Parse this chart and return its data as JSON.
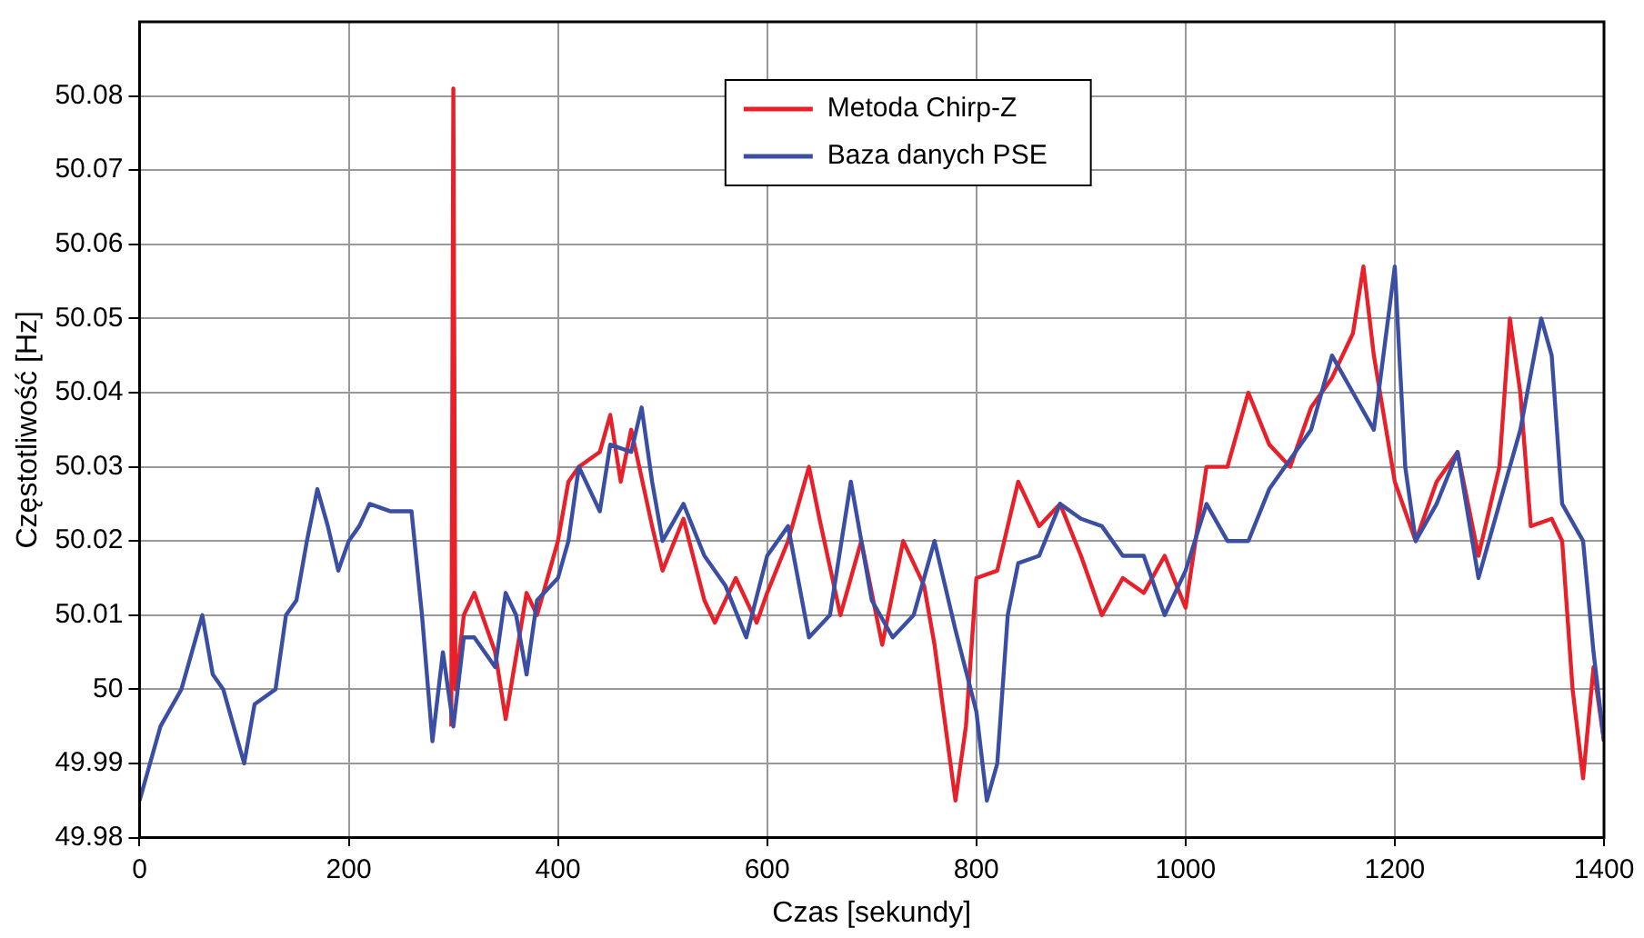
{
  "chart_data": {
    "type": "line",
    "xlabel": "Czas [sekundy]",
    "ylabel": "Częstotliwość [Hz]",
    "xlim": [
      0,
      1400
    ],
    "xticks": [
      0,
      200,
      400,
      600,
      800,
      1000,
      1200,
      1400
    ],
    "ylim": [
      49.98,
      50.09
    ],
    "yticks": [
      49.98,
      49.99,
      50,
      50.01,
      50.02,
      50.03,
      50.04,
      50.05,
      50.06,
      50.07,
      50.08
    ],
    "grid": true,
    "legend": "top",
    "marker": "none",
    "line_style": "solid",
    "series": [
      {
        "name": "Metoda Chirp-Z",
        "color": "#e8202a",
        "x": [
          298,
          300,
          302,
          310,
          320,
          340,
          350,
          370,
          380,
          400,
          410,
          420,
          440,
          450,
          460,
          470,
          490,
          500,
          520,
          540,
          550,
          570,
          590,
          600,
          620,
          640,
          650,
          670,
          690,
          710,
          730,
          750,
          760,
          780,
          790,
          800,
          820,
          840,
          860,
          880,
          900,
          920,
          940,
          960,
          980,
          1000,
          1020,
          1040,
          1060,
          1080,
          1100,
          1120,
          1140,
          1160,
          1170,
          1180,
          1200,
          1220,
          1240,
          1260,
          1280,
          1300,
          1310,
          1320,
          1330,
          1350,
          1360,
          1370,
          1380,
          1390,
          1400
        ],
        "values": [
          49.995,
          50.081,
          50.0,
          50.01,
          50.013,
          50.005,
          49.996,
          50.013,
          50.01,
          50.02,
          50.028,
          50.03,
          50.032,
          50.037,
          50.028,
          50.035,
          50.022,
          50.016,
          50.023,
          50.012,
          50.009,
          50.015,
          50.009,
          50.013,
          50.02,
          50.03,
          50.023,
          50.01,
          50.02,
          50.006,
          50.02,
          50.014,
          50.006,
          49.985,
          49.995,
          50.015,
          50.016,
          50.028,
          50.022,
          50.025,
          50.018,
          50.01,
          50.015,
          50.013,
          50.018,
          50.011,
          50.03,
          50.03,
          50.04,
          50.033,
          50.03,
          50.038,
          50.042,
          50.048,
          50.057,
          50.045,
          50.028,
          50.02,
          50.028,
          50.032,
          50.018,
          50.03,
          50.05,
          50.04,
          50.022,
          50.023,
          50.02,
          50.0,
          49.988,
          50.003,
          49.993
        ]
      },
      {
        "name": "Baza danych PSE",
        "color": "#3a4fa3",
        "x": [
          0,
          10,
          20,
          40,
          60,
          70,
          80,
          100,
          110,
          130,
          140,
          150,
          160,
          170,
          180,
          190,
          200,
          210,
          220,
          240,
          260,
          270,
          280,
          290,
          300,
          310,
          320,
          340,
          350,
          360,
          370,
          380,
          400,
          410,
          420,
          440,
          450,
          470,
          480,
          490,
          500,
          520,
          540,
          560,
          580,
          600,
          620,
          640,
          660,
          680,
          700,
          720,
          740,
          760,
          780,
          800,
          810,
          820,
          830,
          840,
          860,
          880,
          900,
          920,
          940,
          960,
          980,
          1000,
          1020,
          1040,
          1060,
          1080,
          1100,
          1120,
          1140,
          1160,
          1180,
          1200,
          1210,
          1220,
          1240,
          1260,
          1280,
          1300,
          1320,
          1340,
          1350,
          1360,
          1380,
          1390,
          1400
        ],
        "values": [
          49.985,
          49.99,
          49.995,
          50.0,
          50.01,
          50.002,
          50.0,
          49.99,
          49.998,
          50.0,
          50.01,
          50.012,
          50.02,
          50.027,
          50.022,
          50.016,
          50.02,
          50.022,
          50.025,
          50.024,
          50.024,
          50.01,
          49.993,
          50.005,
          49.995,
          50.007,
          50.007,
          50.003,
          50.013,
          50.01,
          50.002,
          50.012,
          50.015,
          50.02,
          50.03,
          50.024,
          50.033,
          50.032,
          50.038,
          50.028,
          50.02,
          50.025,
          50.018,
          50.014,
          50.007,
          50.018,
          50.022,
          50.007,
          50.01,
          50.028,
          50.012,
          50.007,
          50.01,
          50.02,
          50.008,
          49.997,
          49.985,
          49.99,
          50.01,
          50.017,
          50.018,
          50.025,
          50.023,
          50.022,
          50.018,
          50.018,
          50.01,
          50.016,
          50.025,
          50.02,
          50.02,
          50.027,
          50.031,
          50.035,
          50.045,
          50.04,
          50.035,
          50.057,
          50.03,
          50.02,
          50.025,
          50.032,
          50.015,
          50.025,
          50.035,
          50.05,
          50.045,
          50.025,
          50.02,
          50.005,
          49.993
        ]
      }
    ]
  }
}
